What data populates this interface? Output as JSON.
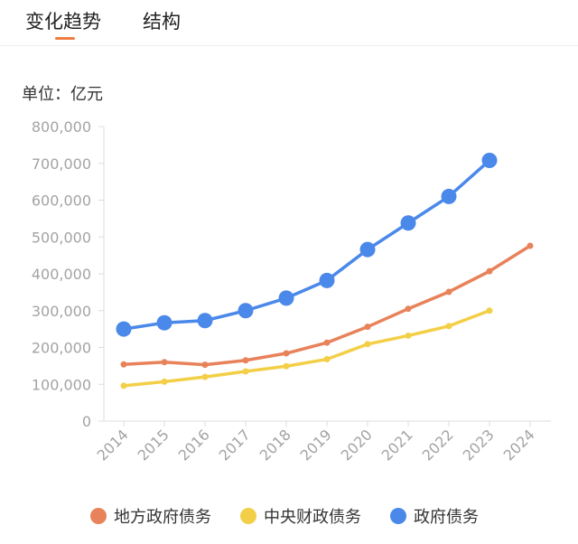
{
  "tabs": [
    {
      "label": "变化趋势"
    },
    {
      "label": "结构"
    }
  ],
  "accent_color": "#f07b3f",
  "unit_label": "单位：亿元",
  "chart_data": {
    "type": "line",
    "categories": [
      "2014",
      "2015",
      "2016",
      "2017",
      "2018",
      "2019",
      "2020",
      "2021",
      "2022",
      "2023",
      "2024"
    ],
    "y_ticks": [
      "0",
      "100,000",
      "200,000",
      "300,000",
      "400,000",
      "500,000",
      "600,000",
      "700,000",
      "800,000"
    ],
    "ylim": [
      0,
      800000
    ],
    "grid": false,
    "legend_position": "bottom",
    "series": [
      {
        "name": "地方政府债务",
        "color": "#e8825a",
        "values": [
          154000,
          160000,
          153000,
          165000,
          184000,
          213000,
          256000,
          305000,
          351000,
          407000,
          476000
        ]
      },
      {
        "name": "中央财政债务",
        "color": "#f3cf48",
        "values": [
          96000,
          107000,
          120000,
          135000,
          149000,
          168000,
          209000,
          232000,
          258000,
          300000,
          null
        ]
      },
      {
        "name": "政府债务",
        "color": "#4a88ea",
        "values": [
          250000,
          267000,
          273000,
          300000,
          334000,
          382000,
          466000,
          538000,
          610000,
          708000,
          null
        ]
      }
    ]
  }
}
